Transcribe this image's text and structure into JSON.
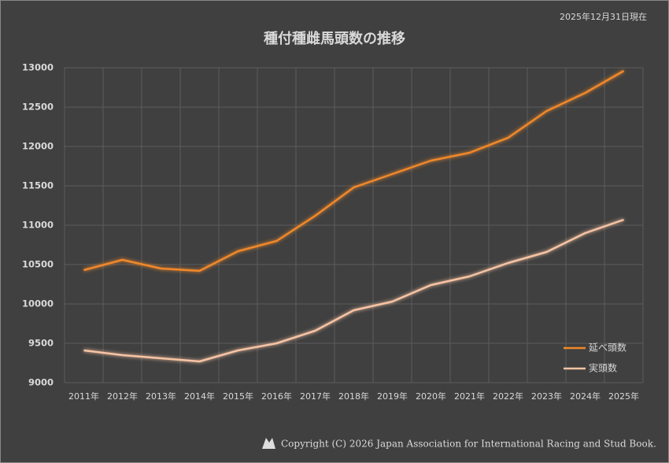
{
  "chart_data": {
    "type": "line",
    "title": "種付種雌馬頭数の推移",
    "note": "2025年12月31日現在",
    "footer": "Copyright (C) 2026 Japan Association for International Racing and Stud Book.",
    "categories": [
      "2011年",
      "2012年",
      "2013年",
      "2014年",
      "2015年",
      "2016年",
      "2017年",
      "2018年",
      "2019年",
      "2020年",
      "2021年",
      "2022年",
      "2023年",
      "2024年",
      "2025年"
    ],
    "series": [
      {
        "name": "延べ頭数",
        "color": "#f0882a",
        "values": [
          10430,
          10560,
          10450,
          10420,
          10670,
          10800,
          11120,
          11480,
          11650,
          11820,
          11920,
          12110,
          12450,
          12680,
          12960
        ]
      },
      {
        "name": "実頭数",
        "color": "#f6c3a3",
        "values": [
          9410,
          9350,
          9310,
          9270,
          9410,
          9500,
          9660,
          9920,
          10030,
          10240,
          10350,
          10520,
          10660,
          10900,
          11070
        ]
      }
    ],
    "ylim": [
      9000,
      13000
    ],
    "yticks": [
      9000,
      9500,
      10000,
      10500,
      11000,
      11500,
      12000,
      12500,
      13000
    ],
    "grid": true,
    "legend": "bottom-right"
  }
}
